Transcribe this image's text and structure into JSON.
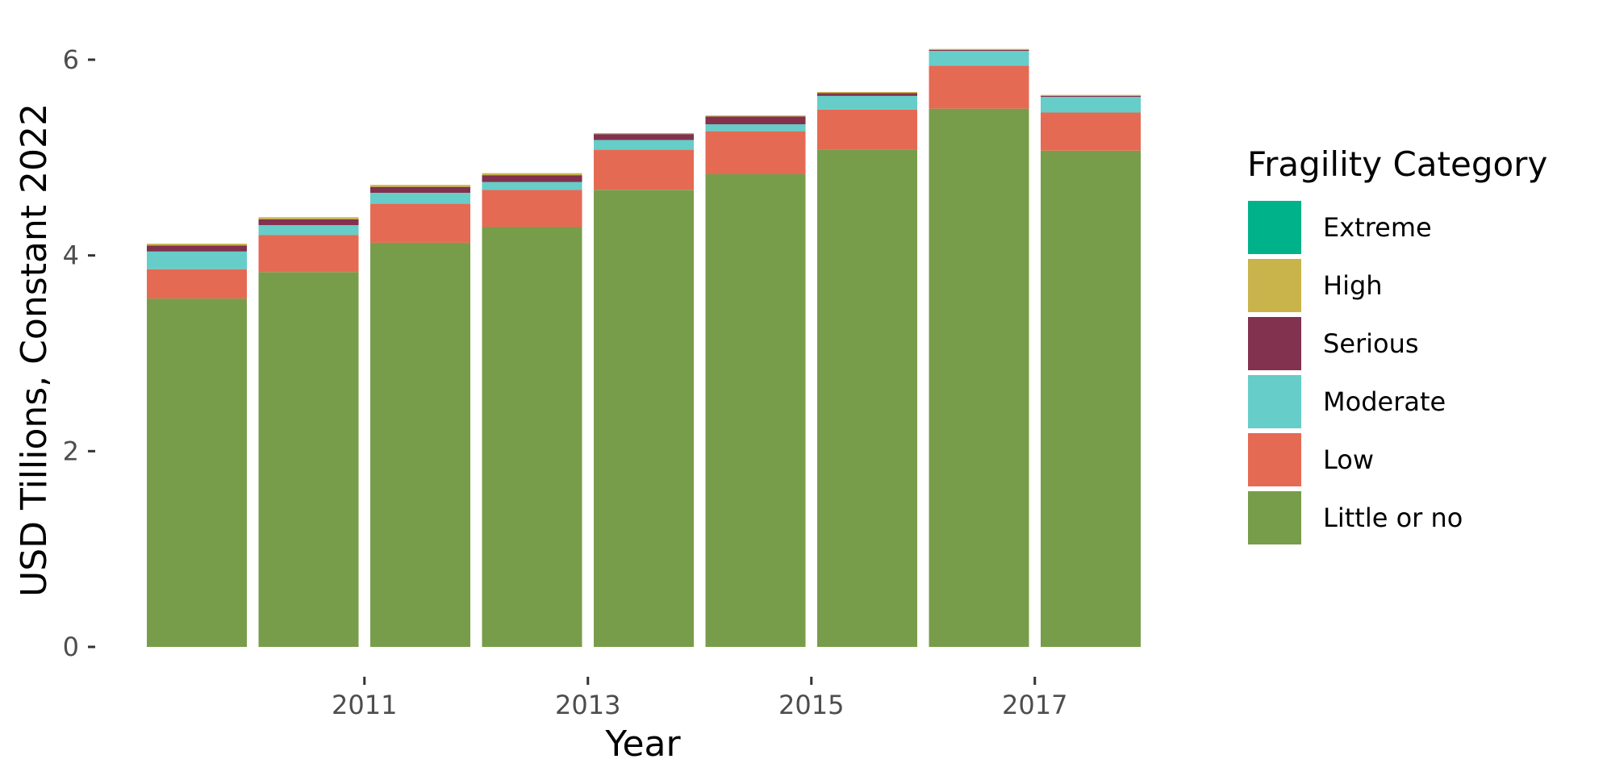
{
  "chart_data": {
    "type": "bar",
    "stacked": true,
    "categories": [
      "2010",
      "2011",
      "2012",
      "2013",
      "2014",
      "2015",
      "2016",
      "2017",
      "2018"
    ],
    "x_tick_labels": [
      "2011",
      "2013",
      "2015",
      "2017"
    ],
    "series": [
      {
        "name": "Little or no",
        "color": "#789d4a",
        "values": [
          3.56,
          3.83,
          4.13,
          4.29,
          4.67,
          4.83,
          5.08,
          5.5,
          5.07
        ]
      },
      {
        "name": "Low",
        "color": "#e56a54",
        "values": [
          0.3,
          0.38,
          0.4,
          0.38,
          0.41,
          0.44,
          0.41,
          0.44,
          0.39
        ]
      },
      {
        "name": "Moderate",
        "color": "#66cdc9",
        "values": [
          0.18,
          0.1,
          0.11,
          0.08,
          0.1,
          0.07,
          0.14,
          0.15,
          0.16
        ]
      },
      {
        "name": "Serious",
        "color": "#82314e",
        "values": [
          0.06,
          0.06,
          0.06,
          0.07,
          0.06,
          0.08,
          0.03,
          0.01,
          0.01
        ]
      },
      {
        "name": "High",
        "color": "#c8b44a",
        "values": [
          0.02,
          0.02,
          0.02,
          0.02,
          0.01,
          0.01,
          0.01,
          0.01,
          0.01
        ]
      },
      {
        "name": "Extreme",
        "color": "#00b28a",
        "values": [
          0.0,
          0.0,
          0.0,
          0.0,
          0.0,
          0.0,
          0.0,
          0.0,
          0.0
        ]
      }
    ],
    "legend_order": [
      "Extreme",
      "High",
      "Serious",
      "Moderate",
      "Low",
      "Little or no"
    ],
    "xlabel": "Year",
    "ylabel": "USD Tillions, Constant 2022",
    "ylim": [
      0,
      6.2
    ],
    "yticks": [
      0,
      2,
      4,
      6
    ],
    "grid": false,
    "legend_title": "Fragility Category",
    "legend_position": "right"
  }
}
